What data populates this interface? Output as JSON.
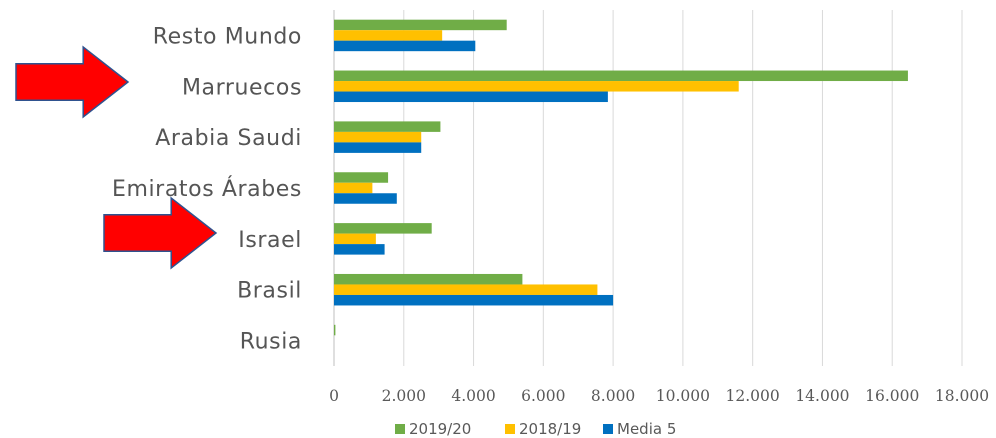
{
  "chart_data": {
    "type": "bar",
    "orientation": "horizontal",
    "categories": [
      "Resto Mundo",
      "Marruecos",
      "Arabia Saudi",
      "Emiratos Árabes",
      "Israel",
      "Brasil ",
      "Rusia"
    ],
    "series": [
      {
        "name": "2019/20",
        "color": "#70AD47",
        "values": [
          4950,
          16450,
          3050,
          1550,
          2800,
          5400,
          40
        ]
      },
      {
        "name": "2018/19",
        "color": "#FFC000",
        "values": [
          3100,
          11600,
          2500,
          1100,
          1200,
          7550,
          0
        ]
      },
      {
        "name": "Media 5",
        "color": "#0070C0",
        "values": [
          4050,
          7850,
          2500,
          1800,
          1450,
          8000,
          0
        ]
      }
    ],
    "xlim": [
      0,
      18000
    ],
    "xticks": [
      0,
      2000,
      4000,
      6000,
      8000,
      10000,
      12000,
      14000,
      16000,
      18000
    ],
    "xtick_labels": [
      "0",
      "2.000",
      "4.000",
      "6.000",
      "8.000",
      "10.000",
      "12.000",
      "14.000",
      "16.000",
      "18.000"
    ],
    "grid": "vertical",
    "legend_position": "bottom",
    "annotations": [
      {
        "type": "arrow",
        "color": "#FF0000",
        "points_to": "Marruecos"
      },
      {
        "type": "arrow",
        "color": "#FF0000",
        "points_to": "Israel"
      }
    ]
  }
}
